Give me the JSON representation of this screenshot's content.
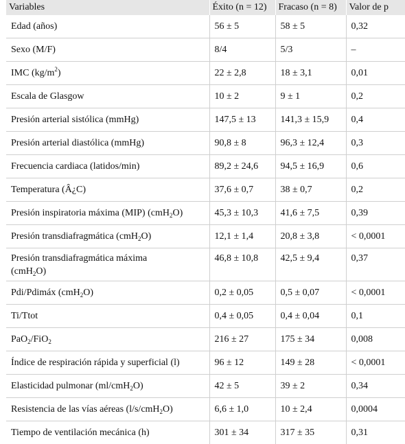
{
  "table": {
    "headers": [
      "Variables",
      "Éxito (n = 12)",
      "Fracaso (n = 8)",
      "Valor de p"
    ],
    "rows": [
      {
        "variable": "Edad (años)",
        "exito": "56 ± 5",
        "fracaso": "58 ± 5",
        "p": "0,32"
      },
      {
        "variable": "Sexo (M/F)",
        "exito": "8/4",
        "fracaso": "5/3",
        "p": "–"
      },
      {
        "variable_parts": [
          "IMC (kg/m",
          "2",
          ")"
        ],
        "exito": "22 ± 2,8",
        "fracaso": "18 ± 3,1",
        "p": "0,01"
      },
      {
        "variable": "Escala de Glasgow",
        "exito": "10 ± 2",
        "fracaso": "9 ± 1",
        "p": "0,2"
      },
      {
        "variable": "Presión arterial sistólica (mmHg)",
        "exito": "147,5 ± 13",
        "fracaso": "141,3 ± 15,9",
        "p": "0,4"
      },
      {
        "variable": "Presión arterial diastólica (mmHg)",
        "exito": "90,8 ± 8",
        "fracaso": "96,3 ± 12,4",
        "p": "0,3"
      },
      {
        "variable": "Frecuencia cardiaca (latidos/min)",
        "exito": "89,2 ± 24,6",
        "fracaso": "94,5 ± 16,9",
        "p": "0,6"
      },
      {
        "variable": "Temperatura (Â¿C)",
        "exito": "37,6 ± 0,7",
        "fracaso": "38 ± 0,7",
        "p": "0,2"
      },
      {
        "variable_parts": [
          "Presión inspiratoria máxima (MIP) (cmH",
          "2",
          "O)"
        ],
        "exito": "45,3 ± 10,3",
        "fracaso": "41,6 ± 7,5",
        "p": "0,39"
      },
      {
        "variable_parts": [
          "Presión transdiafragmática (cmH",
          "2",
          "O)"
        ],
        "exito": "12,1 ± 1,4",
        "fracaso": "20,8 ± 3,8",
        "p": "< 0,0001"
      },
      {
        "variable_parts": [
          "Presión transdiafragmática máxima",
          "(cmH",
          "2",
          "O)"
        ],
        "exito": "46,8 ± 10,8",
        "fracaso": "42,5 ± 9,4",
        "p": "0,37"
      },
      {
        "variable_parts": [
          "Pdi/Pdimáx (cmH",
          "2",
          "O)"
        ],
        "exito": "0,2 ± 0,05",
        "fracaso": "0,5 ± 0,07",
        "p": "< 0,0001"
      },
      {
        "variable": "Ti/Ttot",
        "exito": "0,4 ± 0,05",
        "fracaso": "0,4 ± 0,04",
        "p": "0,1"
      },
      {
        "variable_parts": [
          "PaO",
          "2",
          "/FiO",
          "2"
        ],
        "exito": "216 ± 27",
        "fracaso": "175 ± 34",
        "p": "0,008"
      },
      {
        "variable": "Índice de respiración rápida y superficial (l)",
        "exito": "96 ± 12",
        "fracaso": "149 ± 28",
        "p": "< 0,0001"
      },
      {
        "variable_parts": [
          "Elasticidad pulmonar (ml/cmH",
          "2",
          "O)"
        ],
        "exito": "42 ± 5",
        "fracaso": "39 ± 2",
        "p": "0,34"
      },
      {
        "variable_parts": [
          "Resistencia de las vías aéreas (l/s/cmH",
          "2",
          "O)"
        ],
        "exito": "6,6 ± 1,0",
        "fracaso": "10 ± 2,4",
        "p": "0,0004"
      },
      {
        "variable": "Tiempo de ventilación mecánica (h)",
        "exito": "301 ± 34",
        "fracaso": "317 ± 35",
        "p": "0,31"
      }
    ]
  }
}
